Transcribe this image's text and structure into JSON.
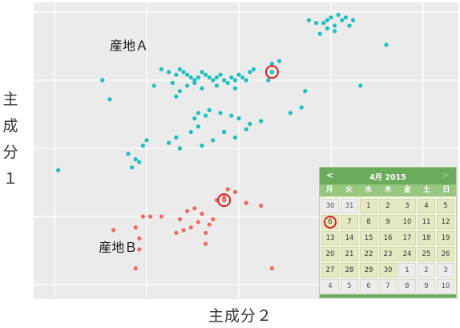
{
  "chart_data": {
    "type": "scatter",
    "xlabel": "主成分２",
    "ylabel": "主成分１",
    "xlim": [
      0,
      10
    ],
    "ylim": [
      0,
      10
    ],
    "grid": true,
    "series": [
      {
        "name": "産地A",
        "color": "#1cbfc0",
        "points": [
          [
            6.9,
            9.7
          ],
          [
            7.1,
            9.6
          ],
          [
            7.3,
            9.6
          ],
          [
            7.4,
            9.7
          ],
          [
            7.4,
            9.4
          ],
          [
            7.6,
            9.5
          ],
          [
            7.5,
            9.8
          ],
          [
            7.7,
            9.9
          ],
          [
            7.8,
            9.7
          ],
          [
            7.6,
            9.3
          ],
          [
            7.2,
            9.2
          ],
          [
            7.9,
            9.8
          ],
          [
            8.1,
            9.7
          ],
          [
            8.0,
            9.5
          ],
          [
            9.0,
            8.8
          ],
          [
            2.9,
            7.9
          ],
          [
            3.1,
            7.8
          ],
          [
            3.3,
            7.7
          ],
          [
            3.4,
            7.9
          ],
          [
            3.5,
            7.8
          ],
          [
            3.6,
            7.7
          ],
          [
            3.7,
            7.6
          ],
          [
            3.8,
            7.5
          ],
          [
            3.9,
            7.6
          ],
          [
            4.0,
            7.8
          ],
          [
            4.1,
            7.7
          ],
          [
            4.2,
            7.6
          ],
          [
            4.3,
            7.5
          ],
          [
            4.4,
            7.6
          ],
          [
            4.5,
            7.7
          ],
          [
            4.6,
            7.5
          ],
          [
            4.7,
            7.4
          ],
          [
            4.8,
            7.6
          ],
          [
            4.9,
            7.5
          ],
          [
            5.0,
            7.7
          ],
          [
            5.1,
            7.6
          ],
          [
            5.2,
            7.5
          ],
          [
            3.2,
            7.4
          ],
          [
            3.6,
            7.3
          ],
          [
            4.0,
            7.2
          ],
          [
            3.4,
            7.1
          ],
          [
            3.8,
            7.4
          ],
          [
            4.4,
            7.3
          ],
          [
            4.9,
            7.2
          ],
          [
            3.3,
            6.9
          ],
          [
            2.7,
            7.3
          ],
          [
            5.3,
            7.8
          ],
          [
            5.4,
            7.9
          ],
          [
            1.3,
            7.5
          ],
          [
            1.5,
            6.8
          ],
          [
            5.8,
            7.5
          ],
          [
            5.9,
            8.1
          ],
          [
            6.1,
            8.2
          ],
          [
            6.8,
            7.1
          ],
          [
            6.7,
            6.5
          ],
          [
            6.4,
            6.3
          ],
          [
            8.3,
            7.3
          ],
          [
            3.8,
            6.1
          ],
          [
            3.9,
            6.3
          ],
          [
            4.1,
            6.2
          ],
          [
            4.2,
            6.4
          ],
          [
            3.9,
            5.8
          ],
          [
            3.7,
            5.6
          ],
          [
            4.5,
            6.3
          ],
          [
            4.8,
            6.2
          ],
          [
            5.0,
            6.1
          ],
          [
            5.3,
            5.9
          ],
          [
            5.6,
            6.0
          ],
          [
            3.3,
            5.4
          ],
          [
            3.1,
            5.2
          ],
          [
            3.4,
            5.0
          ],
          [
            4.0,
            5.1
          ],
          [
            4.3,
            5.3
          ],
          [
            4.6,
            5.6
          ],
          [
            4.9,
            5.4
          ],
          [
            5.2,
            5.7
          ],
          [
            2.5,
            5.3
          ],
          [
            2.4,
            5.1
          ],
          [
            2.0,
            4.8
          ],
          [
            2.3,
            4.5
          ],
          [
            2.2,
            4.6
          ],
          [
            2.1,
            4.3
          ],
          [
            0.1,
            4.2
          ],
          [
            5.9,
            7.8
          ]
        ]
      },
      {
        "name": "産地B",
        "color": "#f06a62",
        "points": [
          [
            4.4,
            3.1
          ],
          [
            4.6,
            3.2
          ],
          [
            4.9,
            3.4
          ],
          [
            5.2,
            3.0
          ],
          [
            4.7,
            3.5
          ],
          [
            3.6,
            2.7
          ],
          [
            3.8,
            2.8
          ],
          [
            4.0,
            2.6
          ],
          [
            3.4,
            2.4
          ],
          [
            3.9,
            2.3
          ],
          [
            3.7,
            2.1
          ],
          [
            4.1,
            1.9
          ],
          [
            4.3,
            2.4
          ],
          [
            4.2,
            2.2
          ],
          [
            3.3,
            1.9
          ],
          [
            3.5,
            2.0
          ],
          [
            2.4,
            2.5
          ],
          [
            2.6,
            2.5
          ],
          [
            2.9,
            2.5
          ],
          [
            2.2,
            2.1
          ],
          [
            2.3,
            1.7
          ],
          [
            2.3,
            1.3
          ],
          [
            1.6,
            2.0
          ],
          [
            4.1,
            1.5
          ],
          [
            2.2,
            0.6
          ],
          [
            5.6,
            2.9
          ],
          [
            5.9,
            0.6
          ],
          [
            4.6,
            3.1
          ]
        ]
      }
    ],
    "annotations": [
      {
        "text": "産地Ａ",
        "x": 1.5,
        "y": 8.6
      },
      {
        "text": "産地Ｂ",
        "x": 1.2,
        "y": 1.2
      }
    ],
    "highlighted": [
      {
        "series": "産地A",
        "x": 5.9,
        "y": 7.8
      },
      {
        "series": "産地B",
        "x": 4.6,
        "y": 3.1
      }
    ]
  },
  "calendar": {
    "prev": "<",
    "next": ">",
    "title": "4月 2015",
    "weekdays": [
      "月",
      "火",
      "水",
      "木",
      "金",
      "土",
      "日"
    ],
    "days": [
      [
        "30",
        "31",
        "1",
        "2",
        "3",
        "4",
        "5"
      ],
      [
        "6",
        "7",
        "8",
        "9",
        "10",
        "11",
        "12"
      ],
      [
        "13",
        "14",
        "15",
        "16",
        "17",
        "18",
        "19"
      ],
      [
        "20",
        "21",
        "22",
        "23",
        "24",
        "25",
        "26"
      ],
      [
        "27",
        "28",
        "29",
        "30",
        "1",
        "2",
        "3"
      ],
      [
        "4",
        "5",
        "6",
        "7",
        "8",
        "9",
        "10"
      ]
    ],
    "highlighted_day": "6"
  }
}
